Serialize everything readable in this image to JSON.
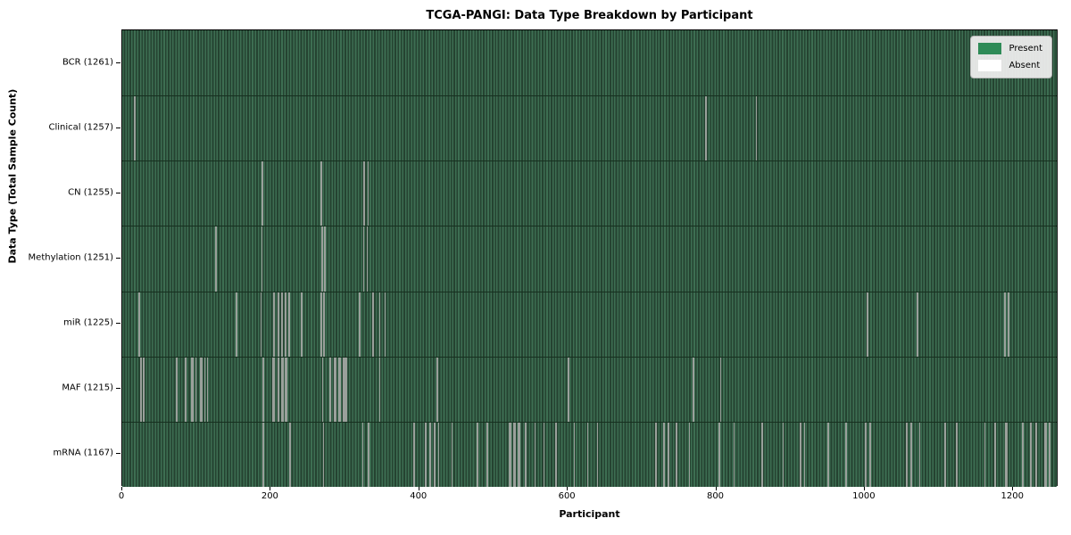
{
  "chart_data": {
    "type": "heatmap",
    "title": "TCGA-PANGI: Data Type Breakdown by Participant",
    "xlabel": "Participant",
    "ylabel": "Data Type (Total Sample Count)",
    "xlim": [
      0,
      1261
    ],
    "x_ticks": [
      0,
      200,
      400,
      600,
      800,
      1000,
      1200
    ],
    "grid": false,
    "legend_position": "upper right",
    "legend": [
      {
        "label": "Present",
        "color": "#2e8b57"
      },
      {
        "label": "Absent",
        "color": "#ffffff"
      }
    ],
    "colors": {
      "present_fill_light": "#3d6e52",
      "present_fill_dark": "#254331",
      "absent_line": "#9aa09b",
      "row_divider": "#16301f",
      "spine": "#000000",
      "legend_background": "#ececec"
    },
    "rows": [
      {
        "label": "BCR",
        "count": 1261,
        "display": "BCR (1261)",
        "absences": []
      },
      {
        "label": "Clinical",
        "count": 1257,
        "display": "Clinical (1257)",
        "absences": [
          [
            16,
            2
          ],
          [
            785,
            2
          ],
          [
            853,
            2
          ]
        ]
      },
      {
        "label": "CN",
        "count": 1255,
        "display": "CN (1255)",
        "absences": [
          [
            188,
            2
          ],
          [
            267,
            2
          ],
          [
            325,
            2
          ],
          [
            330,
            2
          ]
        ]
      },
      {
        "label": "Methylation",
        "count": 1251,
        "display": "Methylation (1251)",
        "absences": [
          [
            125,
            2
          ],
          [
            187,
            2
          ],
          [
            268,
            2
          ],
          [
            272,
            2
          ],
          [
            324,
            2
          ],
          [
            329,
            2
          ]
        ]
      },
      {
        "label": "miR",
        "count": 1225,
        "display": "miR (1225)",
        "absences": [
          [
            22,
            2
          ],
          [
            153,
            2
          ],
          [
            186,
            2
          ],
          [
            203,
            3
          ],
          [
            209,
            2
          ],
          [
            214,
            2
          ],
          [
            219,
            2
          ],
          [
            224,
            2
          ],
          [
            241,
            2
          ],
          [
            267,
            2
          ],
          [
            271,
            2
          ],
          [
            319,
            2
          ],
          [
            337,
            2
          ],
          [
            346,
            2
          ],
          [
            353,
            2
          ],
          [
            1002,
            3
          ],
          [
            1070,
            2
          ],
          [
            1188,
            2
          ],
          [
            1193,
            2
          ]
        ]
      },
      {
        "label": "MAF",
        "count": 1215,
        "display": "MAF (1215)",
        "absences": [
          [
            24,
            2
          ],
          [
            28,
            2
          ],
          [
            72,
            2
          ],
          [
            84,
            3
          ],
          [
            93,
            3
          ],
          [
            98,
            2
          ],
          [
            105,
            3
          ],
          [
            110,
            2
          ],
          [
            114,
            2
          ],
          [
            189,
            2
          ],
          [
            202,
            3
          ],
          [
            209,
            3
          ],
          [
            214,
            3
          ],
          [
            219,
            3
          ],
          [
            269,
            2
          ],
          [
            279,
            2
          ],
          [
            285,
            3
          ],
          [
            291,
            3
          ],
          [
            297,
            3
          ],
          [
            301,
            2
          ],
          [
            346,
            2
          ],
          [
            423,
            2
          ],
          [
            600,
            2
          ],
          [
            768,
            2
          ],
          [
            805,
            2
          ]
        ]
      },
      {
        "label": "mRNA",
        "count": 1167,
        "display": "mRNA (1167)",
        "absences": [
          [
            189,
            2
          ],
          [
            225,
            2
          ],
          [
            270,
            2
          ],
          [
            323,
            2
          ],
          [
            331,
            2
          ],
          [
            392,
            2
          ],
          [
            407,
            3
          ],
          [
            413,
            3
          ],
          [
            419,
            3
          ],
          [
            425,
            2
          ],
          [
            443,
            2
          ],
          [
            477,
            3
          ],
          [
            491,
            2
          ],
          [
            521,
            3
          ],
          [
            527,
            3
          ],
          [
            533,
            3
          ],
          [
            542,
            2
          ],
          [
            555,
            2
          ],
          [
            567,
            2
          ],
          [
            583,
            3
          ],
          [
            608,
            2
          ],
          [
            626,
            2
          ],
          [
            639,
            2
          ],
          [
            718,
            2
          ],
          [
            729,
            2
          ],
          [
            735,
            2
          ],
          [
            745,
            3
          ],
          [
            763,
            2
          ],
          [
            803,
            2
          ],
          [
            823,
            2
          ],
          [
            861,
            2
          ],
          [
            889,
            2
          ],
          [
            912,
            3
          ],
          [
            918,
            2
          ],
          [
            950,
            2
          ],
          [
            974,
            2
          ],
          [
            1000,
            3
          ],
          [
            1006,
            2
          ],
          [
            1055,
            3
          ],
          [
            1061,
            3
          ],
          [
            1073,
            2
          ],
          [
            1107,
            2
          ],
          [
            1123,
            2
          ],
          [
            1161,
            2
          ],
          [
            1175,
            2
          ],
          [
            1189,
            3
          ],
          [
            1212,
            2
          ],
          [
            1223,
            2
          ],
          [
            1230,
            2
          ],
          [
            1242,
            3
          ],
          [
            1248,
            2
          ]
        ]
      }
    ]
  }
}
